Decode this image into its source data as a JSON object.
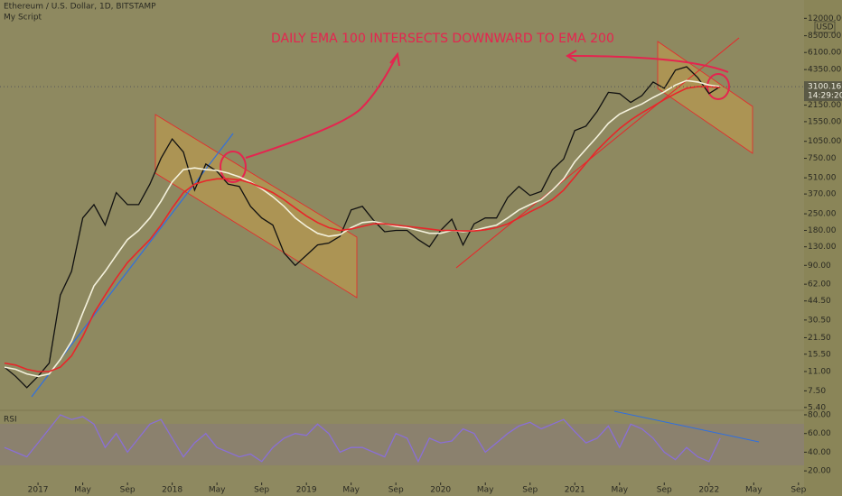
{
  "chart_data": [
    {
      "type": "line",
      "title": "Ethereum / U.S. Dollar, 1D, BITSTAMP",
      "subtitle": "My Script",
      "annotation": "DAILY EMA 100 INTERSECTS DOWNWARD TO EMA 200",
      "log_scale": true,
      "currency": "USD",
      "last_price": 3100.16,
      "countdown": "14:29:20",
      "x": [
        -3,
        -2,
        -1,
        0,
        1,
        2,
        3,
        4,
        5,
        6,
        7,
        8,
        9,
        10,
        11,
        12,
        13,
        14,
        15,
        16,
        17,
        18,
        19,
        20,
        21,
        22,
        23,
        24,
        25,
        26,
        27,
        28,
        29,
        30,
        31,
        32,
        33,
        34,
        35,
        36,
        37,
        38,
        39,
        40,
        41,
        42,
        43,
        44,
        45,
        46,
        47,
        48,
        49,
        50,
        51,
        52,
        53,
        54,
        55,
        56,
        57,
        58,
        59,
        60,
        61
      ],
      "xlim": [
        -3.4,
        68.5
      ],
      "series": [
        {
          "color": "#111111",
          "values": [
            12,
            10,
            8,
            10,
            13,
            50,
            80,
            230,
            300,
            200,
            380,
            300,
            300,
            450,
            750,
            1100,
            850,
            400,
            670,
            580,
            450,
            430,
            290,
            230,
            200,
            115,
            90,
            110,
            135,
            140,
            160,
            270,
            290,
            220,
            175,
            180,
            180,
            150,
            130,
            180,
            225,
            135,
            205,
            230,
            230,
            345,
            430,
            360,
            390,
            600,
            740,
            1300,
            1420,
            1900,
            2770,
            2700,
            2270,
            2600,
            3400,
            3000,
            4300,
            4600,
            3700,
            2700,
            3100
          ]
        },
        {
          "color": "#f4f1dc",
          "values": [
            12,
            11.5,
            10.5,
            10,
            10.5,
            14,
            20,
            35,
            60,
            80,
            110,
            150,
            180,
            230,
            320,
            470,
            600,
            620,
            600,
            590,
            560,
            520,
            470,
            410,
            350,
            290,
            230,
            195,
            170,
            160,
            165,
            190,
            210,
            215,
            205,
            195,
            190,
            180,
            170,
            170,
            180,
            175,
            180,
            190,
            200,
            230,
            270,
            300,
            330,
            400,
            500,
            700,
            900,
            1150,
            1500,
            1800,
            2000,
            2200,
            2500,
            2800,
            3200,
            3500,
            3400,
            3200,
            3100
          ]
        },
        {
          "color": "#e8262a",
          "values": [
            13,
            12.5,
            11.5,
            11,
            11,
            12,
            15,
            22,
            35,
            50,
            70,
            95,
            120,
            150,
            200,
            280,
            380,
            450,
            480,
            500,
            500,
            490,
            460,
            420,
            380,
            330,
            280,
            240,
            210,
            190,
            180,
            185,
            195,
            205,
            205,
            200,
            195,
            190,
            185,
            180,
            180,
            178,
            178,
            182,
            190,
            205,
            230,
            260,
            290,
            330,
            400,
            520,
            680,
            880,
            1100,
            1350,
            1600,
            1850,
            2100,
            2400,
            2700,
            3000,
            3100,
            3100,
            3050
          ]
        }
      ],
      "ylim": [
        5.1,
        17250
      ],
      "yticks": [
        {
          "value": 12000,
          "label": "12000.00"
        },
        {
          "value": 8500,
          "label": "8500.00"
        },
        {
          "value": 6100,
          "label": "6100.00"
        },
        {
          "value": 4350,
          "label": "4350.00"
        },
        {
          "value": 2150,
          "label": "2150.00"
        },
        {
          "value": 1550,
          "label": "1550.00"
        },
        {
          "value": 1050,
          "label": "1050.00"
        },
        {
          "value": 750,
          "label": "750.00"
        },
        {
          "value": 510,
          "label": "510.00"
        },
        {
          "value": 370,
          "label": "370.00"
        },
        {
          "value": 250,
          "label": "250.00"
        },
        {
          "value": 180,
          "label": "180.00"
        },
        {
          "value": 130,
          "label": "130.00"
        },
        {
          "value": 90,
          "label": "90.00"
        },
        {
          "value": 62,
          "label": "62.00"
        },
        {
          "value": 44.5,
          "label": "44.50"
        },
        {
          "value": 30.5,
          "label": "30.50"
        },
        {
          "value": 21.5,
          "label": "21.50"
        },
        {
          "value": 15.5,
          "label": "15.50"
        },
        {
          "value": 11,
          "label": "11.00"
        },
        {
          "value": 7.5,
          "label": "7.50"
        },
        {
          "value": 5.4,
          "label": "5.40"
        }
      ]
    },
    {
      "type": "line",
      "title": "RSI",
      "x": [
        -3,
        -2,
        -1,
        0,
        1,
        2,
        3,
        4,
        5,
        6,
        7,
        8,
        9,
        10,
        11,
        12,
        13,
        14,
        15,
        16,
        17,
        18,
        19,
        20,
        21,
        22,
        23,
        24,
        25,
        26,
        27,
        28,
        29,
        30,
        31,
        32,
        33,
        34,
        35,
        36,
        37,
        38,
        39,
        40,
        41,
        42,
        43,
        44,
        45,
        46,
        47,
        48,
        49,
        50,
        51,
        52,
        53,
        54,
        55,
        56,
        57,
        58,
        59,
        60,
        61
      ],
      "xlim": [
        -3.4,
        68.5
      ],
      "series": [
        {
          "color": "#8a6fd6",
          "values": [
            45,
            40,
            35,
            50,
            65,
            80,
            75,
            78,
            70,
            45,
            60,
            40,
            55,
            70,
            75,
            55,
            35,
            50,
            60,
            45,
            40,
            35,
            38,
            30,
            45,
            55,
            60,
            58,
            70,
            60,
            40,
            45,
            45,
            40,
            35,
            60,
            55,
            30,
            55,
            50,
            52,
            65,
            60,
            40,
            50,
            60,
            68,
            72,
            65,
            70,
            75,
            62,
            50,
            55,
            68,
            45,
            70,
            65,
            55,
            40,
            32,
            45,
            35,
            30,
            55
          ]
        }
      ],
      "ylim": [
        7.6,
        84.8
      ],
      "yticks": [
        {
          "value": 80,
          "label": "80.00"
        },
        {
          "value": 60,
          "label": "60.00"
        },
        {
          "value": 40,
          "label": "40.00"
        },
        {
          "value": 20,
          "label": "20.00"
        }
      ],
      "xticks": [
        {
          "value": 0,
          "label": "2017"
        },
        {
          "value": 4,
          "label": "May"
        },
        {
          "value": 8,
          "label": "Sep"
        },
        {
          "value": 12,
          "label": "2018"
        },
        {
          "value": 16,
          "label": "May"
        },
        {
          "value": 20,
          "label": "Sep"
        },
        {
          "value": 24,
          "label": "2019"
        },
        {
          "value": 28,
          "label": "May"
        },
        {
          "value": 32,
          "label": "Sep"
        },
        {
          "value": 36,
          "label": "2020"
        },
        {
          "value": 40,
          "label": "May"
        },
        {
          "value": 44,
          "label": "Sep"
        },
        {
          "value": 48,
          "label": "2021"
        },
        {
          "value": 52,
          "label": "May"
        },
        {
          "value": 56,
          "label": "Sep"
        },
        {
          "value": 60,
          "label": "2022"
        },
        {
          "value": 64,
          "label": "May"
        },
        {
          "value": 68,
          "label": "Sep"
        }
      ]
    }
  ]
}
